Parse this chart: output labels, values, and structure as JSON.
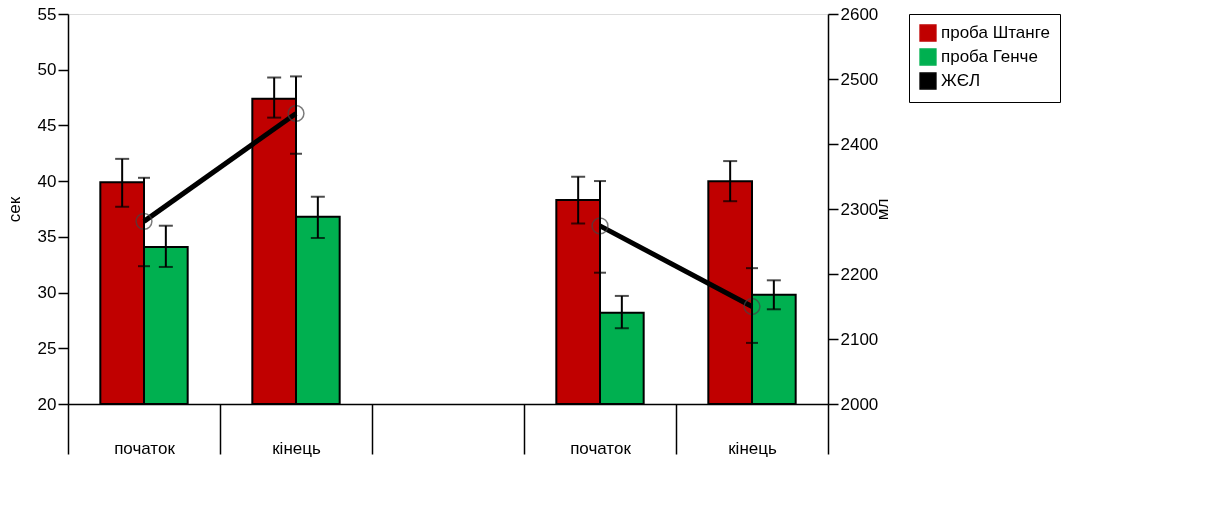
{
  "chart_data": {
    "type": "bar",
    "categories": [
      "початок",
      "кінець",
      null,
      "початок",
      "кінець"
    ],
    "ylabel": "сек",
    "y2label": "мл",
    "ylim": [
      20,
      55
    ],
    "yticks": [
      20,
      25,
      30,
      35,
      40,
      45,
      50,
      55
    ],
    "y2lim": [
      2000,
      2600
    ],
    "y2ticks": [
      2000,
      2100,
      2200,
      2300,
      2400,
      2500,
      2600
    ],
    "legend": "right",
    "grid": false,
    "series": [
      {
        "name": "проба Штанге",
        "color": "#c00000",
        "values": [
          39.9,
          47.4,
          null,
          38.3,
          40.0
        ],
        "errors": [
          [
            37.7,
            42.0
          ],
          [
            45.7,
            49.3
          ],
          null,
          [
            36.2,
            40.4
          ],
          [
            38.2,
            41.8
          ]
        ]
      },
      {
        "name": "проба Генче",
        "color": "#00b050",
        "values": [
          34.1,
          36.8,
          null,
          28.2,
          29.8
        ],
        "errors": [
          [
            32.3,
            36.0
          ],
          [
            34.9,
            38.6
          ],
          null,
          [
            26.8,
            29.7
          ],
          [
            28.5,
            31.1
          ]
        ]
      },
      {
        "name": "ЖЄЛ",
        "type": "line",
        "axis": "y2",
        "color": "#000000",
        "marker": "circle",
        "line_style": "solid",
        "values": [
          2281,
          2447,
          null,
          2274,
          2150
        ],
        "errors": [
          [
            2212,
            2348
          ],
          [
            2385,
            2504
          ],
          null,
          [
            2202,
            2343
          ],
          [
            2094,
            2209
          ]
        ]
      }
    ]
  }
}
